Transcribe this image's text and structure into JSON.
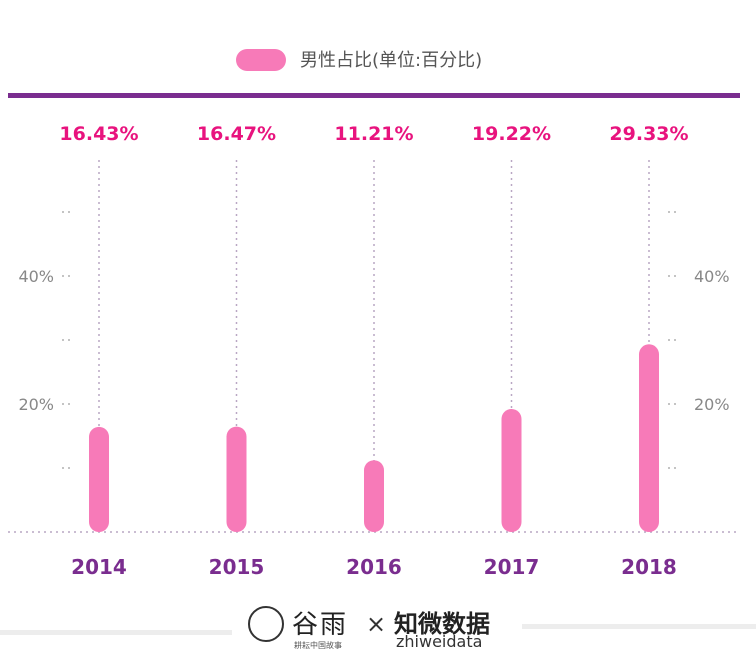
{
  "chart_data": {
    "type": "bar",
    "categories": [
      "2014",
      "2015",
      "2016",
      "2017",
      "2018"
    ],
    "series": [
      {
        "name": "男性占比(单位:百分比)",
        "values": [
          16.43,
          16.47,
          11.21,
          19.22,
          29.33
        ]
      }
    ],
    "data_labels": [
      "16.43%",
      "16.47%",
      "11.21%",
      "19.22%",
      "29.33%"
    ],
    "ylim": [
      0,
      60
    ],
    "y_ticks": [
      20,
      40
    ],
    "y_tick_labels": [
      "20%",
      "40%"
    ],
    "grid": true,
    "legend_position": "top-center",
    "title": "",
    "xlabel": "",
    "ylabel": ""
  },
  "colors": {
    "bar": "#f77ab8",
    "value_label": "#e8137e",
    "category_label": "#7a2d8f",
    "rule": "#7a2d8f",
    "grid": "#b9a7c4",
    "tick": "#888888"
  },
  "footer": {
    "logo1": "谷雨",
    "logo1_sub": "耕耘中国故事",
    "cross": "×",
    "logo2": "知微数据",
    "logo2_sub": "zhiweidata"
  },
  "icons": {
    "logo1_mark": "bird-in-circle-icon"
  }
}
